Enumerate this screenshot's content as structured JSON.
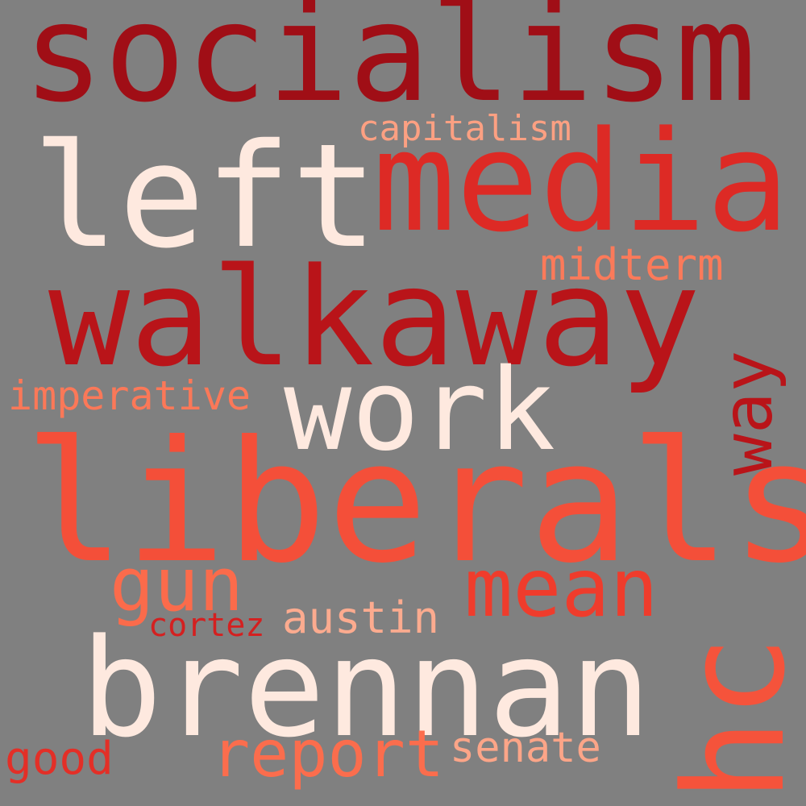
{
  "background": "#808080",
  "words": [
    {
      "text": "socialism",
      "color": "#a00e16"
    },
    {
      "text": "left",
      "color": "#fee9df"
    },
    {
      "text": "media",
      "color": "#dd2a25"
    },
    {
      "text": "capitalism",
      "color": "#fca082"
    },
    {
      "text": "walkaway",
      "color": "#b91419"
    },
    {
      "text": "midterm",
      "color": "#fb7a5a"
    },
    {
      "text": "way",
      "color": "#b91419"
    },
    {
      "text": "imperative",
      "color": "#fb7858"
    },
    {
      "text": "work",
      "color": "#fee9df"
    },
    {
      "text": "liberals",
      "color": "#f44f39"
    },
    {
      "text": "gun",
      "color": "#fb6b4b"
    },
    {
      "text": "mean",
      "color": "#ef3c2c"
    },
    {
      "text": "cortez",
      "color": "#d42020"
    },
    {
      "text": "austin",
      "color": "#fcab8f"
    },
    {
      "text": "brennan",
      "color": "#fee9df"
    },
    {
      "text": "hc",
      "color": "#f5533b"
    },
    {
      "text": "report",
      "color": "#fb6d4d"
    },
    {
      "text": "senate",
      "color": "#fca588"
    },
    {
      "text": "good",
      "color": "#e32f27"
    }
  ]
}
